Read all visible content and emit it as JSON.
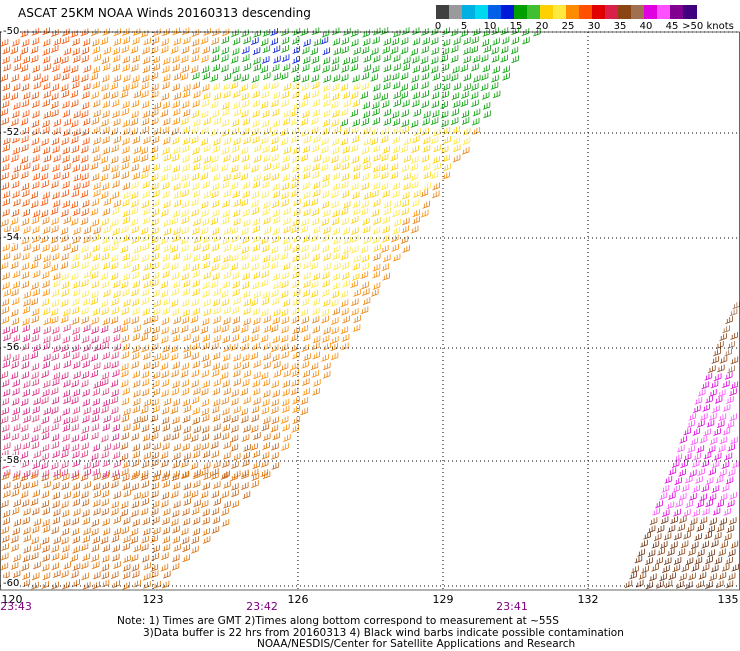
{
  "title": "ASCAT 25KM NOAA Winds 20160313 descending",
  "colorbar": {
    "segments": [
      "#404040",
      "#9a9a9a",
      "#00b0e0",
      "#00d8f0",
      "#0060e8",
      "#0018d8",
      "#00a000",
      "#40c030",
      "#ffd000",
      "#ffe840",
      "#ff8c00",
      "#ff5000",
      "#e00000",
      "#d82048",
      "#8b4513",
      "#a07050",
      "#e000e0",
      "#ff50ff",
      "#800090",
      "#400080"
    ],
    "ticks": [
      "0",
      "5",
      "10",
      "15",
      "20",
      "25",
      "30",
      "35",
      "40",
      "45",
      ">50 knots"
    ]
  },
  "latitudes": [
    "-50",
    "-52",
    "-54",
    "-56",
    "-58",
    "-60"
  ],
  "longitudes": [
    "120",
    "123",
    "126",
    "129",
    "132",
    "135"
  ],
  "times": [
    "23:43",
    "23:42",
    "23:41"
  ],
  "notes": [
    "Note: 1) Times are GMT 2)Times along bottom correspond to measurement at ~55S",
    "3)Data buffer is 22 hrs from 20160313 4) Black wind barbs indicate possible contamination",
    "NOAA/NESDIS/Center for Satellite Applications and Research"
  ]
}
